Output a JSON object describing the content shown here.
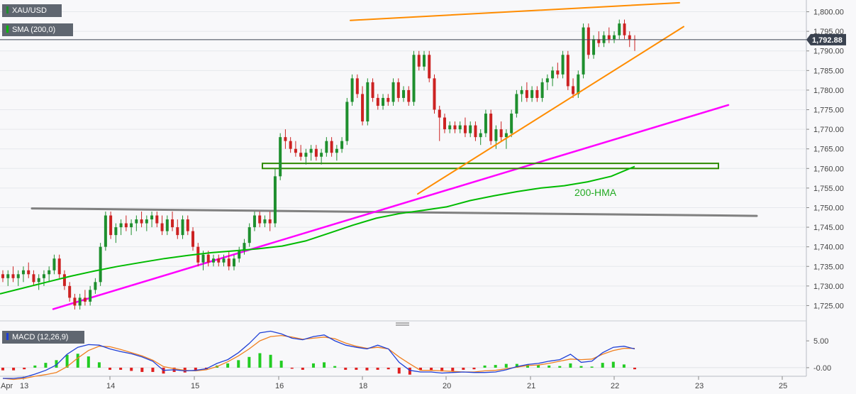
{
  "chart_data": [
    {
      "type": "candlestick",
      "symbol": "XAU/USD",
      "indicator_label": "SMA (200,0)",
      "current_price": "1,792.88",
      "ylim": [
        1722,
        1803
      ],
      "y_ticks": [
        "1,800.00",
        "1,795.00",
        "1,790.00",
        "1,785.00",
        "1,780.00",
        "1,775.00",
        "1,770.00",
        "1,765.00",
        "1,760.00",
        "1,755.00",
        "1,750.00",
        "1,745.00",
        "1,740.00",
        "1,735.00",
        "1,730.00",
        "1,725.00"
      ],
      "x_ticks": [
        "Apr",
        "13",
        "14",
        "15",
        "16",
        "18",
        "20",
        "21",
        "22",
        "23",
        "25"
      ],
      "candles": [
        [
          1733,
          1734,
          1731,
          1732
        ],
        [
          1732,
          1734,
          1730,
          1733
        ],
        [
          1733,
          1735,
          1731,
          1732
        ],
        [
          1732,
          1734,
          1730,
          1733
        ],
        [
          1733,
          1735,
          1731,
          1734
        ],
        [
          1734,
          1736,
          1732,
          1733
        ],
        [
          1733,
          1734,
          1730,
          1731
        ],
        [
          1731,
          1733,
          1729,
          1732
        ],
        [
          1732,
          1734,
          1730,
          1733
        ],
        [
          1733,
          1735,
          1731,
          1734
        ],
        [
          1734,
          1738,
          1733,
          1737
        ],
        [
          1737,
          1738,
          1732,
          1733
        ],
        [
          1733,
          1734,
          1729,
          1730
        ],
        [
          1730,
          1731,
          1726,
          1727
        ],
        [
          1727,
          1728,
          1724,
          1725
        ],
        [
          1725,
          1728,
          1724,
          1727
        ],
        [
          1727,
          1729,
          1725,
          1726
        ],
        [
          1726,
          1730,
          1725,
          1729
        ],
        [
          1729,
          1732,
          1728,
          1731
        ],
        [
          1731,
          1741,
          1730,
          1740
        ],
        [
          1740,
          1749,
          1739,
          1748
        ],
        [
          1748,
          1749,
          1742,
          1743
        ],
        [
          1743,
          1746,
          1741,
          1745
        ],
        [
          1745,
          1747,
          1743,
          1746
        ],
        [
          1746,
          1748,
          1744,
          1745
        ],
        [
          1745,
          1747,
          1743,
          1746
        ],
        [
          1746,
          1748,
          1744,
          1747
        ],
        [
          1747,
          1749,
          1745,
          1746
        ],
        [
          1746,
          1748,
          1744,
          1747
        ],
        [
          1747,
          1749,
          1745,
          1748
        ],
        [
          1748,
          1749,
          1745,
          1746
        ],
        [
          1746,
          1748,
          1743,
          1744
        ],
        [
          1744,
          1748,
          1743,
          1747
        ],
        [
          1747,
          1749,
          1744,
          1745
        ],
        [
          1745,
          1747,
          1742,
          1743
        ],
        [
          1743,
          1748,
          1742,
          1747
        ],
        [
          1747,
          1748,
          1743,
          1744
        ],
        [
          1744,
          1745,
          1739,
          1740
        ],
        [
          1740,
          1741,
          1735,
          1736
        ],
        [
          1736,
          1739,
          1734,
          1738
        ],
        [
          1738,
          1739,
          1735,
          1736
        ],
        [
          1736,
          1738,
          1735,
          1737
        ],
        [
          1737,
          1738,
          1735,
          1736
        ],
        [
          1736,
          1738,
          1735,
          1737
        ],
        [
          1737,
          1739,
          1734,
          1735
        ],
        [
          1735,
          1738,
          1734,
          1737
        ],
        [
          1737,
          1740,
          1736,
          1739
        ],
        [
          1739,
          1742,
          1738,
          1741
        ],
        [
          1741,
          1746,
          1740,
          1745
        ],
        [
          1745,
          1749,
          1744,
          1748
        ],
        [
          1748,
          1749,
          1745,
          1746
        ],
        [
          1746,
          1748,
          1745,
          1747
        ],
        [
          1747,
          1749,
          1744,
          1746
        ],
        [
          1746,
          1760,
          1745,
          1758
        ],
        [
          1758,
          1769,
          1757,
          1768
        ],
        [
          1768,
          1770,
          1765,
          1767
        ],
        [
          1767,
          1768,
          1764,
          1765
        ],
        [
          1765,
          1767,
          1763,
          1764
        ],
        [
          1764,
          1766,
          1762,
          1763
        ],
        [
          1763,
          1765,
          1761,
          1764
        ],
        [
          1764,
          1766,
          1762,
          1765
        ],
        [
          1765,
          1766,
          1762,
          1763
        ],
        [
          1763,
          1765,
          1761,
          1764
        ],
        [
          1764,
          1768,
          1763,
          1767
        ],
        [
          1767,
          1768,
          1763,
          1764
        ],
        [
          1764,
          1766,
          1762,
          1765
        ],
        [
          1765,
          1768,
          1764,
          1767
        ],
        [
          1767,
          1778,
          1766,
          1777
        ],
        [
          1777,
          1784,
          1776,
          1783
        ],
        [
          1783,
          1784,
          1778,
          1779
        ],
        [
          1779,
          1781,
          1771,
          1772
        ],
        [
          1772,
          1783,
          1771,
          1782
        ],
        [
          1782,
          1783,
          1777,
          1778
        ],
        [
          1778,
          1779,
          1775,
          1776
        ],
        [
          1776,
          1779,
          1775,
          1778
        ],
        [
          1778,
          1779,
          1776,
          1777
        ],
        [
          1777,
          1783,
          1776,
          1782
        ],
        [
          1782,
          1783,
          1777,
          1778
        ],
        [
          1778,
          1781,
          1777,
          1780
        ],
        [
          1780,
          1781,
          1776,
          1777
        ],
        [
          1777,
          1790,
          1776,
          1789
        ],
        [
          1789,
          1790,
          1785,
          1786
        ],
        [
          1786,
          1790,
          1785,
          1789
        ],
        [
          1789,
          1790,
          1782,
          1783
        ],
        [
          1783,
          1784,
          1774,
          1775
        ],
        [
          1775,
          1776,
          1767,
          1773
        ],
        [
          1773,
          1774,
          1769,
          1770
        ],
        [
          1770,
          1772,
          1769,
          1771
        ],
        [
          1771,
          1772,
          1769,
          1770
        ],
        [
          1770,
          1772,
          1769,
          1771
        ],
        [
          1771,
          1773,
          1768,
          1769
        ],
        [
          1769,
          1772,
          1768,
          1771
        ],
        [
          1771,
          1772,
          1767,
          1768
        ],
        [
          1768,
          1770,
          1766,
          1769
        ],
        [
          1769,
          1775,
          1768,
          1774
        ],
        [
          1774,
          1775,
          1766,
          1767
        ],
        [
          1767,
          1771,
          1765,
          1770
        ],
        [
          1770,
          1772,
          1767,
          1768
        ],
        [
          1768,
          1770,
          1765,
          1769
        ],
        [
          1769,
          1775,
          1768,
          1774
        ],
        [
          1774,
          1780,
          1773,
          1779
        ],
        [
          1779,
          1781,
          1777,
          1780
        ],
        [
          1780,
          1782,
          1777,
          1778
        ],
        [
          1778,
          1781,
          1777,
          1780
        ],
        [
          1780,
          1781,
          1777,
          1778
        ],
        [
          1778,
          1783,
          1777,
          1782
        ],
        [
          1782,
          1784,
          1780,
          1783
        ],
        [
          1783,
          1786,
          1781,
          1785
        ],
        [
          1785,
          1787,
          1783,
          1784
        ],
        [
          1784,
          1790,
          1783,
          1789
        ],
        [
          1789,
          1790,
          1780,
          1781
        ],
        [
          1781,
          1783,
          1778,
          1779
        ],
        [
          1779,
          1785,
          1778,
          1784
        ],
        [
          1784,
          1797,
          1783,
          1796
        ],
        [
          1796,
          1797,
          1788,
          1789
        ],
        [
          1789,
          1794,
          1788,
          1793
        ],
        [
          1793,
          1795,
          1791,
          1792
        ],
        [
          1792,
          1795,
          1791,
          1794
        ],
        [
          1794,
          1796,
          1792,
          1793
        ],
        [
          1793,
          1795,
          1792,
          1794
        ],
        [
          1794,
          1798,
          1793,
          1797
        ],
        [
          1797,
          1798,
          1793,
          1794
        ],
        [
          1794,
          1795,
          1791,
          1793
        ],
        [
          1793,
          1794,
          1790,
          1792.88
        ]
      ],
      "sma_200": [
        1728.0,
        1729.5,
        1731.0,
        1732.5,
        1733.8,
        1735.0,
        1736.0,
        1737.0,
        1737.8,
        1738.5,
        1739.0,
        1739.5,
        1740.2,
        1741.5,
        1743.5,
        1745.5,
        1747.3,
        1748.5,
        1749.3,
        1750.2,
        1751.8,
        1753.0,
        1754.1,
        1755.0,
        1755.6,
        1756.6,
        1758.0,
        1760.5
      ],
      "resistance_line": {
        "label": "",
        "from": [
          0,
          1797.8
        ],
        "to": [
          1,
          1802.3
        ]
      },
      "wedge_support": {
        "label": "",
        "from": [
          0,
          1753.5
        ],
        "to": [
          1,
          1796.2
        ]
      },
      "ascending_support": {
        "label": "",
        "from": [
          0,
          1724.1
        ],
        "to": [
          1,
          1776.2
        ]
      },
      "horizontal_support": {
        "label": "",
        "from": [
          0,
          1749.8
        ],
        "to": [
          1,
          1747.9
        ]
      },
      "support_zone": [
        1760.0,
        1761.3
      ],
      "annotation": "200-HMA",
      "colors": {
        "bull": "#1e8f2e",
        "bear": "#cc2222",
        "sma": "#00bb00",
        "resistance": "#ff8c00",
        "ascending_support": "#ff00ff",
        "horizontal_support": "#808080",
        "zone": "#2e8b00",
        "price_tag": "#3a4250",
        "annotation": "#22aa22"
      }
    },
    {
      "type": "macd",
      "label": "MACD (12,26,9)",
      "ylim": [
        -1.6,
        7.4
      ],
      "y_ticks": [
        "5.00",
        "-0.00"
      ],
      "macd_line": [
        -2,
        -2,
        -1.8,
        -1.2,
        -0.5,
        0.5,
        2.5,
        3.8,
        4.3,
        4.2,
        3.5,
        3.0,
        2.6,
        2.0,
        1.2,
        -0.5,
        -0.4,
        -0.6,
        -0.5,
        -0.2,
        0.8,
        1.5,
        2.8,
        4.5,
        6.5,
        6.8,
        6.3,
        5.5,
        5.2,
        5.8,
        6.1,
        5.0,
        4.2,
        3.8,
        3.5,
        4.2,
        3.5,
        1.0,
        -0.5,
        -0.8,
        -0.8,
        -1.0,
        -0.9,
        -0.8,
        -0.9,
        -0.9,
        -0.8,
        -0.4,
        0.2,
        0.6,
        0.8,
        1.2,
        1.5,
        2.5,
        1.0,
        1.2,
        2.8,
        3.8,
        4.0,
        3.5
      ],
      "signal_line": [
        -2,
        -2.2,
        -2.0,
        -1.6,
        -1.3,
        -0.9,
        0.2,
        1.8,
        3.2,
        4.0,
        3.9,
        3.4,
        2.8,
        2.2,
        1.4,
        0.2,
        -0.2,
        -0.5,
        -0.6,
        -0.4,
        0.2,
        1.1,
        2.2,
        3.5,
        5.0,
        5.8,
        6.0,
        5.7,
        5.3,
        5.5,
        5.7,
        5.4,
        4.6,
        4.0,
        3.6,
        3.8,
        3.5,
        2.0,
        0.7,
        -0.5,
        -0.5,
        -0.6,
        -0.7,
        -0.8,
        -0.8,
        -0.6,
        -0.5,
        -0.2,
        0.1,
        0.4,
        0.5,
        0.8,
        1.2,
        1.6,
        1.5,
        1.6,
        2.5,
        3.2,
        3.6,
        3.6
      ],
      "histogram": [
        -0.5,
        -0.5,
        -0.3,
        0.4,
        0.9,
        1.4,
        2.4,
        2.6,
        2.1,
        1.0,
        -0.4,
        -0.4,
        -0.6,
        -0.8,
        -0.8,
        -1.1,
        -0.8,
        -0.9,
        -0.6,
        -0.3,
        0.4,
        0.8,
        1.4,
        2.0,
        2.7,
        2.4,
        1.3,
        -0.2,
        -0.4,
        0.8,
        1.0,
        0.3,
        -0.4,
        -0.4,
        -0.5,
        -0.4,
        -0.3,
        -1.1,
        -1.3,
        -0.5,
        -0.6,
        -0.7,
        -0.6,
        -0.4,
        -0.3,
        0.4,
        0.5,
        0.7,
        0.7,
        0.6,
        0.5,
        0.4,
        0.3,
        0.8,
        0.3,
        0.2,
        0.9,
        1.1,
        0.6,
        -0.3
      ],
      "colors": {
        "macd": "#1f3fd6",
        "signal": "#f08020",
        "hist_pos": "#22cc22",
        "hist_neg": "#e02020"
      }
    }
  ]
}
